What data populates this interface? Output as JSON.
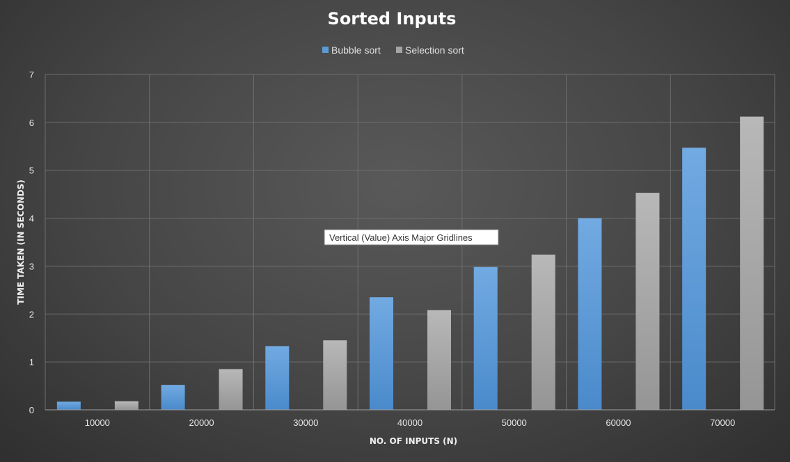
{
  "chart_data": {
    "type": "bar",
    "title": "Sorted Inputs",
    "xlabel": "NO. OF INPUTS (N)",
    "ylabel": "TIME TAKEN (IN SECONDS)",
    "categories": [
      "10000",
      "20000",
      "30000",
      "40000",
      "50000",
      "60000",
      "70000"
    ],
    "series": [
      {
        "name": "Bubble sort",
        "color": "#5b9bd5",
        "values": [
          0.17,
          0.52,
          1.33,
          2.35,
          2.98,
          4.0,
          5.47
        ]
      },
      {
        "name": "Selection sort",
        "color": "#a5a5a5",
        "values": [
          0.18,
          0.85,
          1.45,
          2.08,
          3.24,
          4.53,
          6.12
        ]
      }
    ],
    "ylim": [
      0,
      7
    ],
    "yticks": [
      "0",
      "1",
      "2",
      "3",
      "4",
      "5",
      "6",
      "7"
    ],
    "grid": true,
    "legend_position": "top"
  },
  "tooltip": {
    "text": "Vertical (Value) Axis Major Gridlines"
  }
}
